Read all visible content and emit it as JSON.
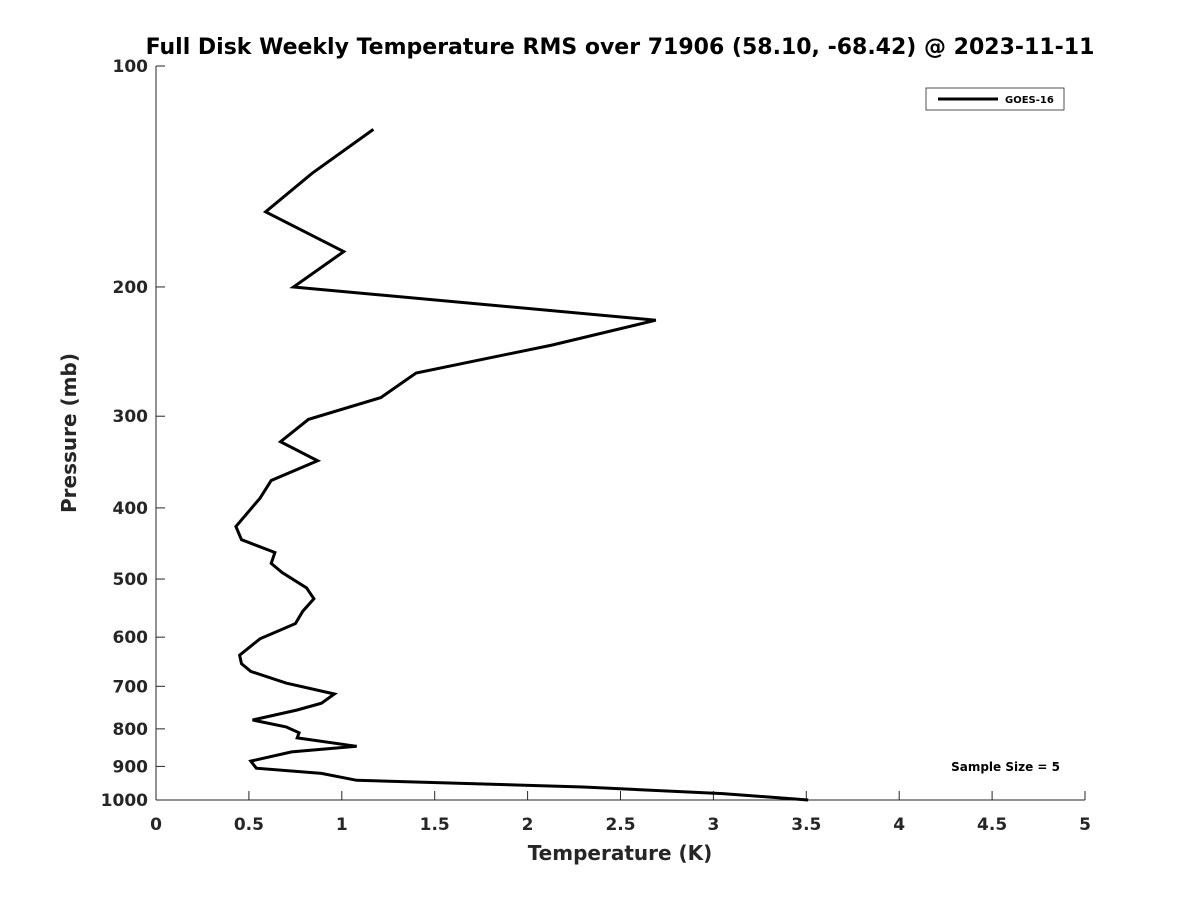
{
  "chart_data": {
    "type": "line",
    "title": "Full Disk Weekly Temperature RMS over 71906 (58.10, -68.42) @ 2023-11-11",
    "xlabel": "Temperature (K)",
    "ylabel": "Pressure (mb)",
    "xlim": [
      0,
      5
    ],
    "ylim": [
      100,
      1000
    ],
    "y_scale": "log",
    "y_reversed": true,
    "grid": false,
    "legend_position": "top-right",
    "x_ticks": [
      "0",
      "0.5",
      "1",
      "1.5",
      "2",
      "2.5",
      "3",
      "3.5",
      "4",
      "4.5",
      "5"
    ],
    "x_tick_values": [
      0,
      0.5,
      1,
      1.5,
      2,
      2.5,
      3,
      3.5,
      4,
      4.5,
      5
    ],
    "y_ticks": [
      "100",
      "200",
      "300",
      "400",
      "500",
      "600",
      "700",
      "800",
      "900",
      "1000"
    ],
    "y_tick_values": [
      100,
      200,
      300,
      400,
      500,
      600,
      700,
      800,
      900,
      1000
    ],
    "series": [
      {
        "name": "GOES-16",
        "color": "#000000",
        "x": [
          1.17,
          0.84,
          0.59,
          1.01,
          0.74,
          2.69,
          2.13,
          1.4,
          1.21,
          0.82,
          0.67,
          0.87,
          0.62,
          0.56,
          0.43,
          0.46,
          0.64,
          0.62,
          0.68,
          0.81,
          0.85,
          0.79,
          0.75,
          0.56,
          0.45,
          0.46,
          0.51,
          0.7,
          0.96,
          0.89,
          0.76,
          0.52,
          0.7,
          0.77,
          0.76,
          1.08,
          0.73,
          0.51,
          0.54,
          0.89,
          1.08,
          2.3,
          3.05,
          3.51
        ],
        "y": [
          122,
          140,
          158,
          179,
          200,
          222,
          240,
          262,
          283,
          303,
          325,
          345,
          367,
          388,
          424,
          442,
          460,
          476,
          490,
          514,
          532,
          553,
          575,
          603,
          635,
          652,
          668,
          693,
          717,
          738,
          754,
          778,
          795,
          810,
          823,
          845,
          860,
          885,
          905,
          920,
          940,
          960,
          980,
          1000
        ]
      }
    ],
    "legend": [
      {
        "name": "GOES-16",
        "color": "#000000"
      }
    ],
    "annotations": [
      {
        "text": "Sample Size = 5",
        "position": "bottom-right"
      }
    ]
  }
}
